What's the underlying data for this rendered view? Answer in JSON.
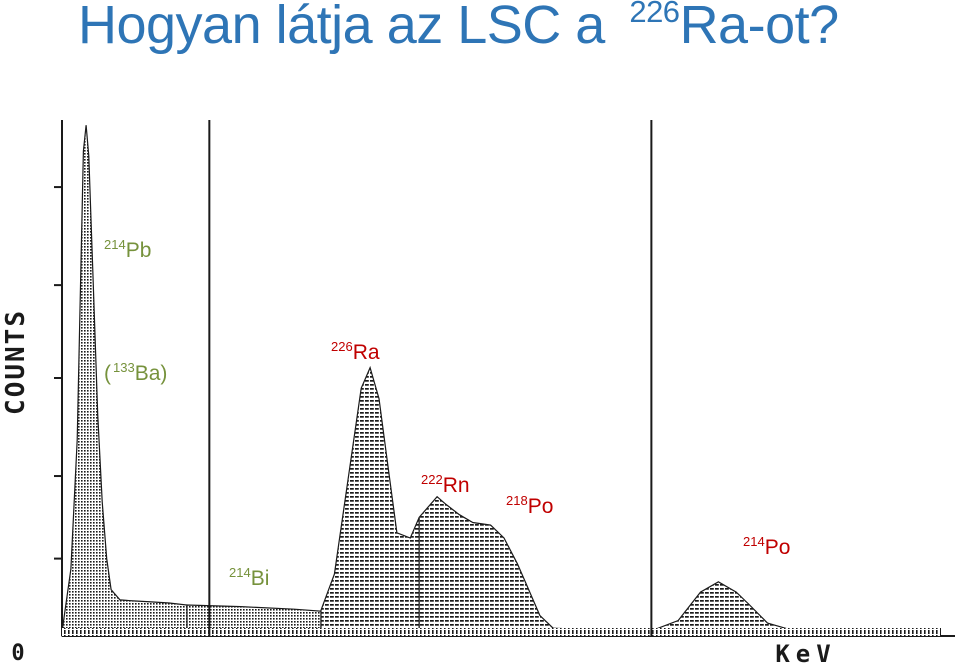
{
  "title": {
    "main": "Hogyan látja az LSC a ",
    "sup": "226",
    "tail": "Ra-ot?"
  },
  "colors": {
    "title": "#2e75b6",
    "green_labels": "#76923c",
    "red_labels": "#c00000",
    "trace": "#1a1a1a"
  },
  "chart_data": {
    "type": "area",
    "ylabel": "COUNTS",
    "xlabel": "KeV",
    "y_origin_label": "0",
    "grid": false,
    "series": [
      {
        "name": "214Pb (133Ba)",
        "x": [
          0.0,
          0.01,
          0.017,
          0.024,
          0.027,
          0.03,
          0.035,
          0.04,
          0.045,
          0.05,
          0.055,
          0.065,
          0.08,
          0.1,
          0.12,
          0.14
        ],
        "y": [
          0.008,
          0.13,
          0.38,
          0.94,
          0.99,
          0.93,
          0.68,
          0.43,
          0.26,
          0.15,
          0.09,
          0.07,
          0.068,
          0.066,
          0.064,
          0.06
        ]
      },
      {
        "name": "214Bi",
        "x": [
          0.14,
          0.2,
          0.26,
          0.29
        ],
        "y": [
          0.06,
          0.057,
          0.052,
          0.048
        ]
      },
      {
        "name": "226Ra",
        "x": [
          0.29,
          0.305,
          0.32,
          0.335,
          0.345,
          0.355,
          0.365,
          0.375,
          0.39,
          0.4
        ],
        "y": [
          0.05,
          0.12,
          0.3,
          0.48,
          0.52,
          0.46,
          0.33,
          0.2,
          0.19,
          0.23
        ]
      },
      {
        "name": "222Rn / 218Po",
        "x": [
          0.4,
          0.42,
          0.43,
          0.445,
          0.46,
          0.48,
          0.495,
          0.51,
          0.52,
          0.535,
          0.55
        ],
        "y": [
          0.23,
          0.27,
          0.255,
          0.235,
          0.22,
          0.215,
          0.19,
          0.14,
          0.1,
          0.04,
          0.015
        ]
      },
      {
        "name": "214Po",
        "x": [
          0.55,
          0.6,
          0.66,
          0.69,
          0.715,
          0.735,
          0.755,
          0.77,
          0.79,
          0.82,
          0.88
        ],
        "y": [
          0.015,
          0.012,
          0.01,
          0.03,
          0.085,
          0.105,
          0.085,
          0.06,
          0.025,
          0.01,
          0.006
        ]
      }
    ],
    "window_markers_x": [
      0.165,
      0.66
    ]
  },
  "labels": {
    "pb214": {
      "sup": "214",
      "text": "Pb"
    },
    "ba133": {
      "open": "(",
      "sup": "133",
      "text": "Ba)"
    },
    "ra226": {
      "sup": "226",
      "text": "Ra"
    },
    "rn222": {
      "sup": "222",
      "text": "Rn"
    },
    "po218": {
      "sup": "218",
      "text": "Po"
    },
    "po214": {
      "sup": "214",
      "text": "Po"
    },
    "bi214": {
      "sup": "214",
      "text": "Bi"
    }
  }
}
